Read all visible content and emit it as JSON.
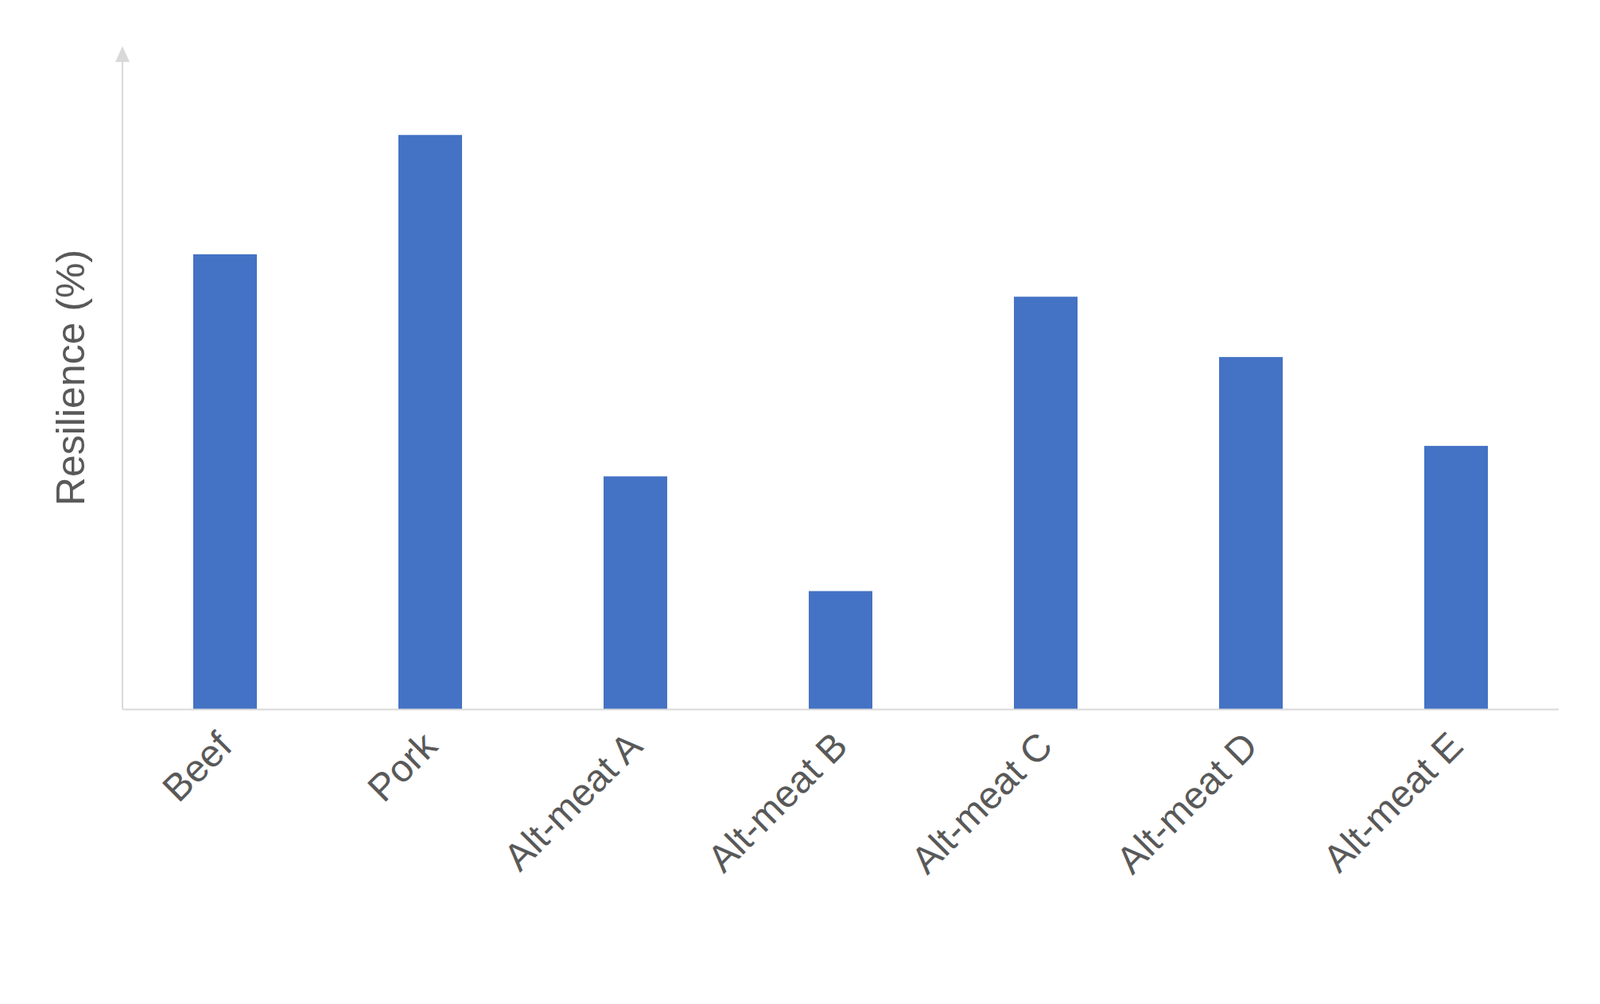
{
  "chart_data": {
    "type": "bar",
    "y_label": "Resilience (%)",
    "categories": [
      "Beef",
      "Pork",
      "Alt-meat A",
      "Alt-meat B",
      "Alt-meat C",
      "Alt-meat D",
      "Alt-meat E"
    ],
    "values": [
      68.6,
      86.6,
      35.1,
      17.8,
      62.2,
      53.1,
      39.7
    ],
    "color": "#4472c4",
    "ylim": [
      0,
      100
    ],
    "yticks": [],
    "grid": false,
    "tick_labels": "x"
  }
}
